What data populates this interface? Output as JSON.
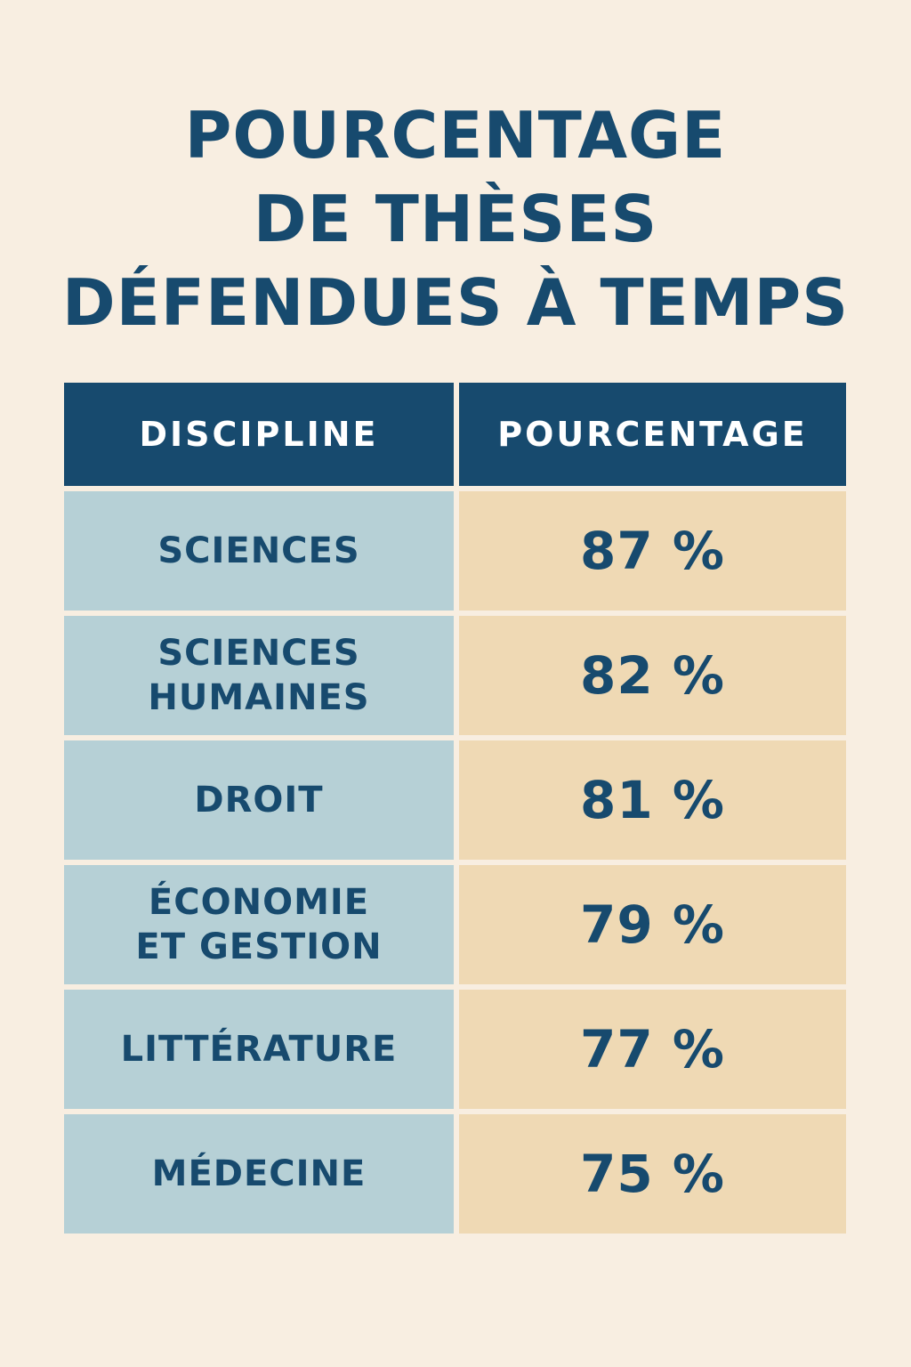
{
  "chart_data": {
    "type": "table",
    "title_lines": [
      "POURCENTAGE",
      "DE THÈSES",
      "DÉFENDUES À TEMPS"
    ],
    "columns": [
      "DISCIPLINE",
      "POURCENTAGE"
    ],
    "rows": [
      {
        "discipline": "SCIENCES",
        "value": 87,
        "display": "87 %"
      },
      {
        "discipline": "SCIENCES\nHUMAINES",
        "value": 82,
        "display": "82 %"
      },
      {
        "discipline": "DROIT",
        "value": 81,
        "display": "81 %"
      },
      {
        "discipline": "ÉCONOMIE\nET GESTION",
        "value": 79,
        "display": "79 %"
      },
      {
        "discipline": "LITTÉRATURE",
        "value": 77,
        "display": "77 %"
      },
      {
        "discipline": "MÉDECINE",
        "value": 75,
        "display": "75 %"
      }
    ],
    "colors": {
      "background": "#f8eee1",
      "title": "#174a6e",
      "header_background": "#174a6e",
      "header_text": "#ffffff",
      "discipline_background": "#b6d0d6",
      "value_background": "#efd9b4",
      "body_text": "#174a6e"
    }
  }
}
